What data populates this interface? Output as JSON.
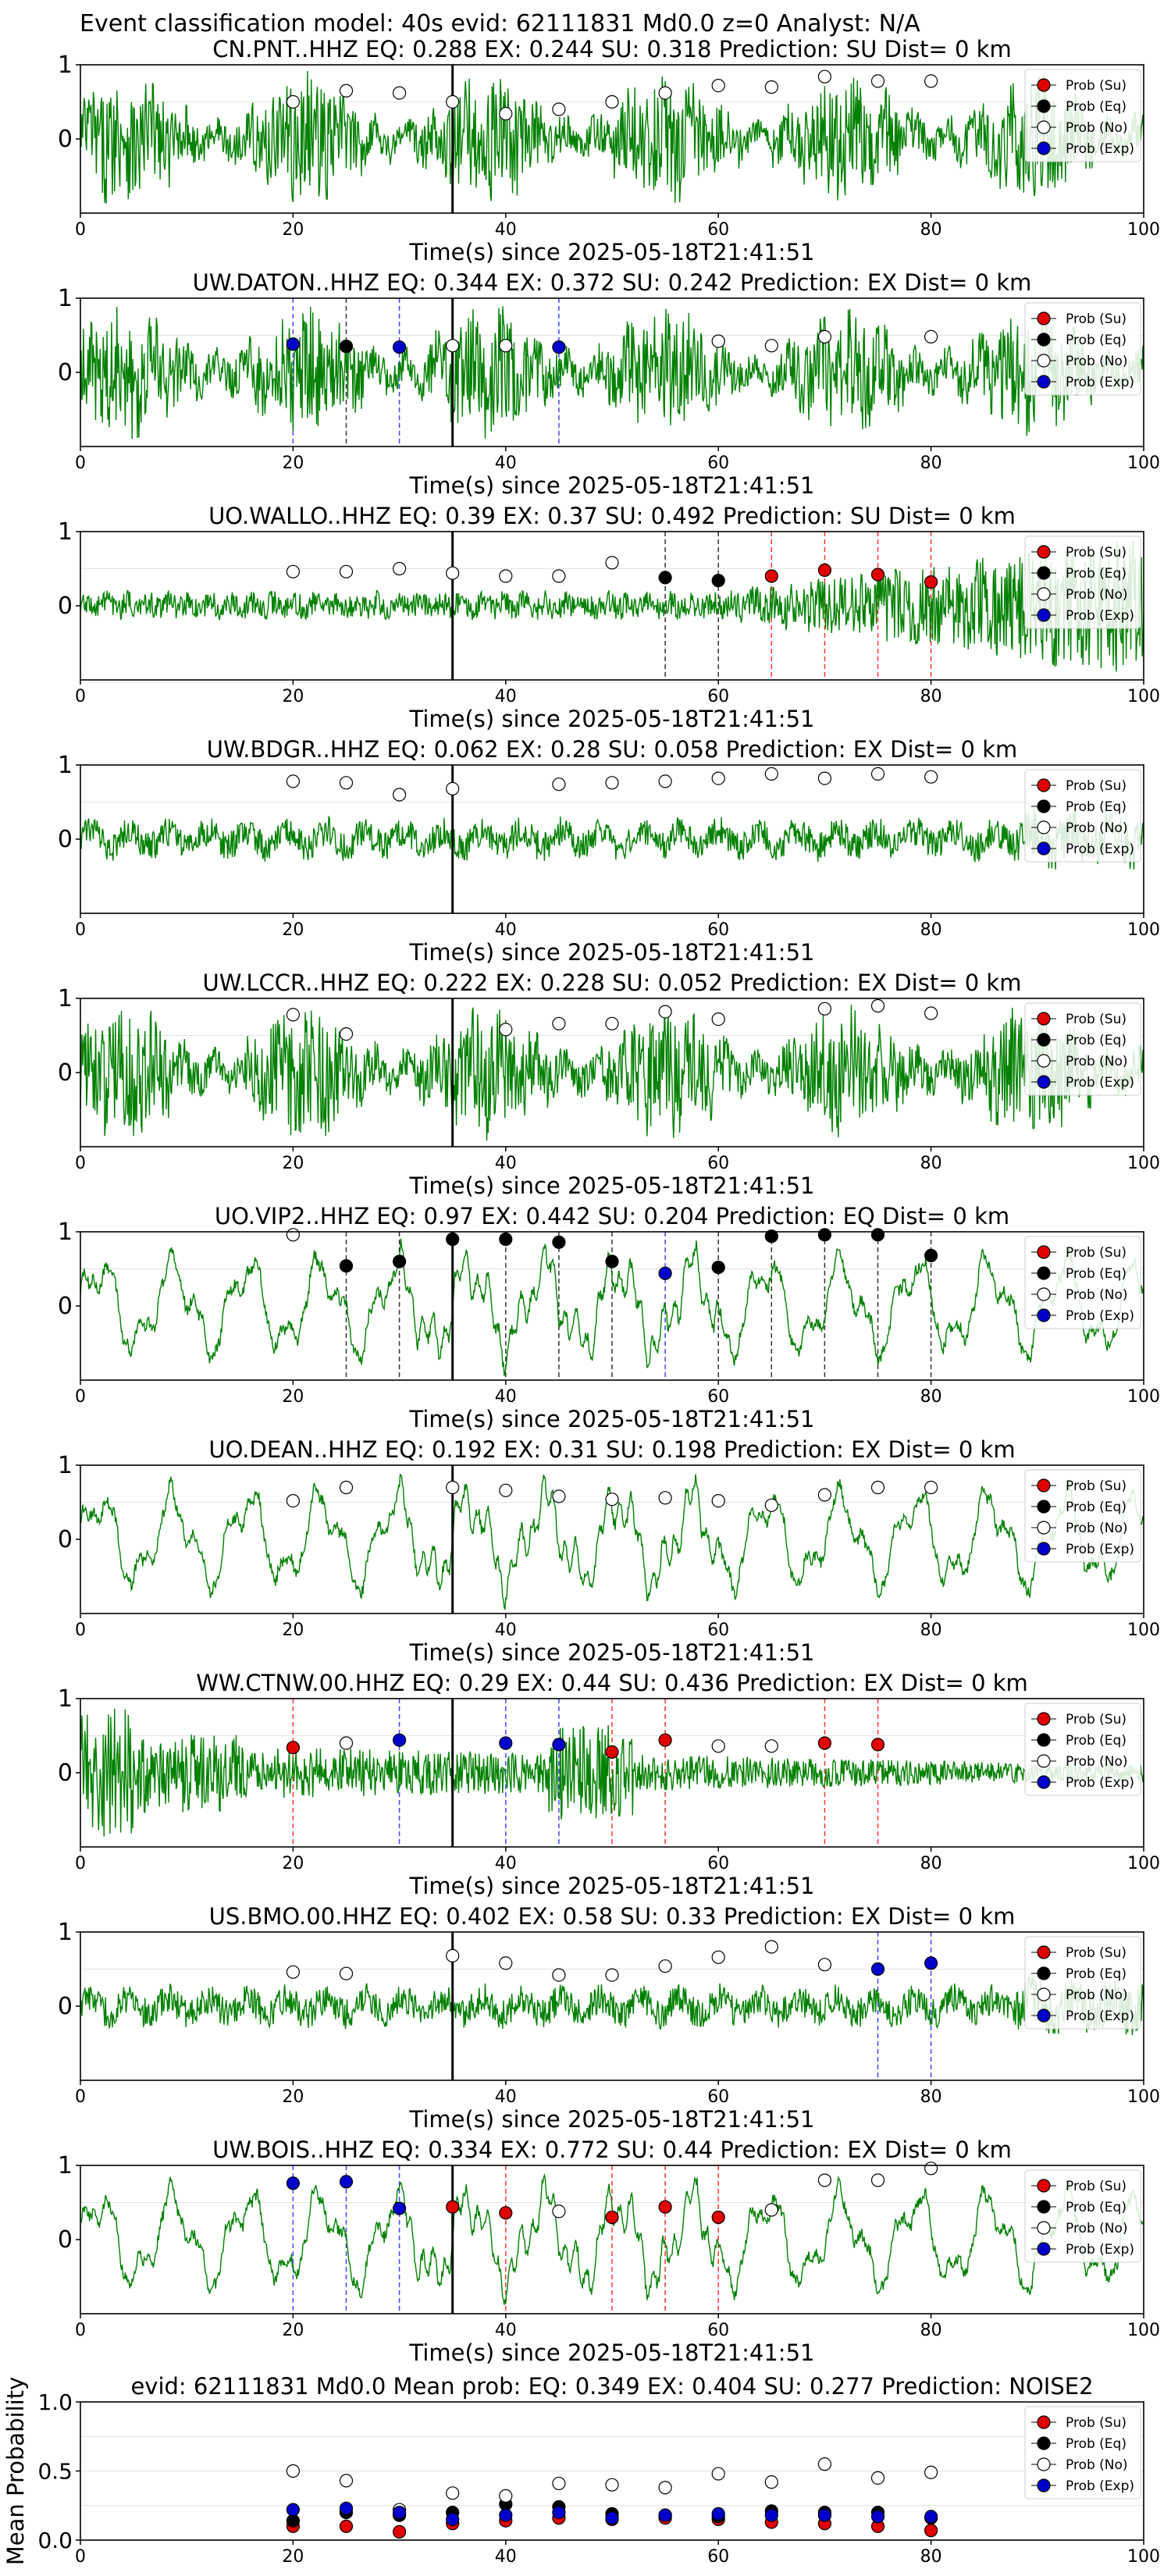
{
  "figure_title": "Event classification model: 40s evid: 62111831 Md0.0 z=0 Analyst: N/A",
  "legend_labels": [
    "Prob (Su)",
    "Prob (Eq)",
    "Prob (No)",
    "Prob (Exp)"
  ],
  "colors": {
    "waveform": "#008000",
    "su": "#e00000",
    "eq": "#000000",
    "no": "#ffffff",
    "exp": "#0000cc",
    "pick_line": "#000000"
  },
  "chart_data": [
    {
      "type": "line",
      "title": "CN.PNT..HHZ  EQ: 0.288  EX: 0.244  SU: 0.318   Prediction: SU    Dist= 0 km",
      "xlabel": "Time(s) since 2025-05-18T21:41:51",
      "ylabel": "",
      "xlim": [
        0,
        100
      ],
      "ylim": [
        -1,
        1
      ],
      "xticks": [
        "0",
        "20",
        "40",
        "60",
        "80",
        "100"
      ],
      "yticks": [
        "1",
        "0"
      ],
      "style": "bursty",
      "pick_time": 35,
      "points": [
        {
          "x": 20,
          "y": 0.5,
          "class": "no"
        },
        {
          "x": 25,
          "y": 0.65,
          "class": "no"
        },
        {
          "x": 30,
          "y": 0.62,
          "class": "no"
        },
        {
          "x": 35,
          "y": 0.5,
          "class": "no"
        },
        {
          "x": 40,
          "y": 0.34,
          "class": "no"
        },
        {
          "x": 45,
          "y": 0.4,
          "class": "no"
        },
        {
          "x": 50,
          "y": 0.5,
          "class": "no"
        },
        {
          "x": 55,
          "y": 0.62,
          "class": "no"
        },
        {
          "x": 60,
          "y": 0.72,
          "class": "no"
        },
        {
          "x": 65,
          "y": 0.7,
          "class": "no"
        },
        {
          "x": 70,
          "y": 0.84,
          "class": "no"
        },
        {
          "x": 75,
          "y": 0.78,
          "class": "no"
        },
        {
          "x": 80,
          "y": 0.78,
          "class": "no"
        }
      ]
    },
    {
      "type": "line",
      "title": "UW.DATON..HHZ   EQ: 0.344  EX: 0.372  SU: 0.242   Prediction: EX    Dist= 0 km",
      "xlabel": "Time(s) since 2025-05-18T21:41:51",
      "ylabel": "",
      "xlim": [
        0,
        100
      ],
      "ylim": [
        -1,
        1
      ],
      "xticks": [
        "0",
        "20",
        "40",
        "60",
        "80",
        "100"
      ],
      "yticks": [
        "1",
        "0"
      ],
      "style": "bursty",
      "pick_time": 35,
      "points": [
        {
          "x": 20,
          "y": 0.38,
          "class": "exp"
        },
        {
          "x": 25,
          "y": 0.35,
          "class": "eq"
        },
        {
          "x": 30,
          "y": 0.34,
          "class": "exp"
        },
        {
          "x": 35,
          "y": 0.36,
          "class": "no"
        },
        {
          "x": 40,
          "y": 0.36,
          "class": "no"
        },
        {
          "x": 45,
          "y": 0.34,
          "class": "exp"
        },
        {
          "x": 60,
          "y": 0.42,
          "class": "no"
        },
        {
          "x": 65,
          "y": 0.36,
          "class": "no"
        },
        {
          "x": 70,
          "y": 0.48,
          "class": "no"
        },
        {
          "x": 80,
          "y": 0.48,
          "class": "no"
        }
      ]
    },
    {
      "type": "line",
      "title": "UO.WALLO..HHZ   EQ: 0.39  EX: 0.37  SU: 0.492   Prediction: SU    Dist= 0 km",
      "xlabel": "Time(s) since 2025-05-18T21:41:51",
      "ylabel": "",
      "xlim": [
        0,
        100
      ],
      "ylim": [
        -1,
        1
      ],
      "xticks": [
        "0",
        "20",
        "40",
        "60",
        "80",
        "100"
      ],
      "yticks": [
        "1",
        "0"
      ],
      "style": "growing",
      "pick_time": 35,
      "points": [
        {
          "x": 20,
          "y": 0.46,
          "class": "no"
        },
        {
          "x": 25,
          "y": 0.46,
          "class": "no"
        },
        {
          "x": 30,
          "y": 0.5,
          "class": "no"
        },
        {
          "x": 35,
          "y": 0.44,
          "class": "no"
        },
        {
          "x": 40,
          "y": 0.4,
          "class": "no"
        },
        {
          "x": 45,
          "y": 0.4,
          "class": "no"
        },
        {
          "x": 50,
          "y": 0.58,
          "class": "no"
        },
        {
          "x": 55,
          "y": 0.38,
          "class": "eq"
        },
        {
          "x": 60,
          "y": 0.34,
          "class": "eq"
        },
        {
          "x": 65,
          "y": 0.4,
          "class": "su"
        },
        {
          "x": 70,
          "y": 0.48,
          "class": "su"
        },
        {
          "x": 75,
          "y": 0.42,
          "class": "su"
        },
        {
          "x": 80,
          "y": 0.32,
          "class": "su"
        }
      ]
    },
    {
      "type": "line",
      "title": "UW.BDGR..HHZ    EQ: 0.062  EX: 0.28  SU: 0.058   Prediction: EX    Dist= 0 km",
      "xlabel": "Time(s) since 2025-05-18T21:41:51",
      "ylabel": "",
      "xlim": [
        0,
        100
      ],
      "ylim": [
        -1,
        1
      ],
      "xticks": [
        "0",
        "20",
        "40",
        "60",
        "80",
        "100"
      ],
      "yticks": [
        "1",
        "0"
      ],
      "style": "noise",
      "pick_time": 35,
      "points": [
        {
          "x": 20,
          "y": 0.78,
          "class": "no"
        },
        {
          "x": 25,
          "y": 0.76,
          "class": "no"
        },
        {
          "x": 30,
          "y": 0.6,
          "class": "no"
        },
        {
          "x": 35,
          "y": 0.68,
          "class": "no"
        },
        {
          "x": 45,
          "y": 0.74,
          "class": "no"
        },
        {
          "x": 50,
          "y": 0.76,
          "class": "no"
        },
        {
          "x": 55,
          "y": 0.78,
          "class": "no"
        },
        {
          "x": 60,
          "y": 0.82,
          "class": "no"
        },
        {
          "x": 65,
          "y": 0.88,
          "class": "no"
        },
        {
          "x": 70,
          "y": 0.82,
          "class": "no"
        },
        {
          "x": 75,
          "y": 0.88,
          "class": "no"
        },
        {
          "x": 80,
          "y": 0.84,
          "class": "no"
        }
      ]
    },
    {
      "type": "line",
      "title": "UW.LCCR..HHZ    EQ: 0.222  EX: 0.228  SU: 0.052   Prediction: EX    Dist= 0 km",
      "xlabel": "Time(s) since 2025-05-18T21:41:51",
      "ylabel": "",
      "xlim": [
        0,
        100
      ],
      "ylim": [
        -1,
        1
      ],
      "xticks": [
        "0",
        "20",
        "40",
        "60",
        "80",
        "100"
      ],
      "yticks": [
        "1",
        "0"
      ],
      "style": "bursty",
      "pick_time": 35,
      "points": [
        {
          "x": 20,
          "y": 0.78,
          "class": "no"
        },
        {
          "x": 25,
          "y": 0.52,
          "class": "no"
        },
        {
          "x": 40,
          "y": 0.58,
          "class": "no"
        },
        {
          "x": 45,
          "y": 0.66,
          "class": "no"
        },
        {
          "x": 50,
          "y": 0.66,
          "class": "no"
        },
        {
          "x": 55,
          "y": 0.82,
          "class": "no"
        },
        {
          "x": 60,
          "y": 0.72,
          "class": "no"
        },
        {
          "x": 70,
          "y": 0.86,
          "class": "no"
        },
        {
          "x": 75,
          "y": 0.9,
          "class": "no"
        },
        {
          "x": 80,
          "y": 0.8,
          "class": "no"
        }
      ]
    },
    {
      "type": "line",
      "title": "UO.VIP2..HHZ    EQ: 0.97  EX: 0.442  SU: 0.204   Prediction: EQ    Dist= 0 km",
      "xlabel": "Time(s) since 2025-05-18T21:41:51",
      "ylabel": "",
      "xlim": [
        0,
        100
      ],
      "ylim": [
        -1,
        1
      ],
      "xticks": [
        "0",
        "20",
        "40",
        "60",
        "80",
        "100"
      ],
      "yticks": [
        "1",
        "0"
      ],
      "style": "wave",
      "pick_time": 35,
      "points": [
        {
          "x": 20,
          "y": 0.96,
          "class": "no"
        },
        {
          "x": 25,
          "y": 0.54,
          "class": "eq"
        },
        {
          "x": 30,
          "y": 0.6,
          "class": "eq"
        },
        {
          "x": 35,
          "y": 0.9,
          "class": "eq"
        },
        {
          "x": 40,
          "y": 0.9,
          "class": "eq"
        },
        {
          "x": 45,
          "y": 0.86,
          "class": "eq"
        },
        {
          "x": 50,
          "y": 0.6,
          "class": "eq"
        },
        {
          "x": 55,
          "y": 0.44,
          "class": "exp"
        },
        {
          "x": 60,
          "y": 0.52,
          "class": "eq"
        },
        {
          "x": 65,
          "y": 0.94,
          "class": "eq"
        },
        {
          "x": 70,
          "y": 0.96,
          "class": "eq"
        },
        {
          "x": 75,
          "y": 0.96,
          "class": "eq"
        },
        {
          "x": 80,
          "y": 0.68,
          "class": "eq"
        }
      ]
    },
    {
      "type": "line",
      "title": "UO.DEAN..HHZ   EQ: 0.192  EX: 0.31  SU: 0.198   Prediction: EX    Dist= 0 km",
      "xlabel": "Time(s) since 2025-05-18T21:41:51",
      "ylabel": "",
      "xlim": [
        0,
        100
      ],
      "ylim": [
        -1,
        1
      ],
      "xticks": [
        "0",
        "20",
        "40",
        "60",
        "80",
        "100"
      ],
      "yticks": [
        "1",
        "0"
      ],
      "style": "wave",
      "pick_time": 35,
      "points": [
        {
          "x": 20,
          "y": 0.52,
          "class": "no"
        },
        {
          "x": 25,
          "y": 0.7,
          "class": "no"
        },
        {
          "x": 35,
          "y": 0.7,
          "class": "no"
        },
        {
          "x": 40,
          "y": 0.66,
          "class": "no"
        },
        {
          "x": 45,
          "y": 0.58,
          "class": "no"
        },
        {
          "x": 50,
          "y": 0.54,
          "class": "no"
        },
        {
          "x": 55,
          "y": 0.56,
          "class": "no"
        },
        {
          "x": 60,
          "y": 0.52,
          "class": "no"
        },
        {
          "x": 65,
          "y": 0.46,
          "class": "no"
        },
        {
          "x": 70,
          "y": 0.6,
          "class": "no"
        },
        {
          "x": 75,
          "y": 0.7,
          "class": "no"
        },
        {
          "x": 80,
          "y": 0.7,
          "class": "no"
        }
      ]
    },
    {
      "type": "line",
      "title": "WW.CTNW.00.HHZ   EQ: 0.29  EX: 0.44  SU: 0.436   Prediction: EX    Dist= 0 km",
      "xlabel": "Time(s) since 2025-05-18T21:41:51",
      "ylabel": "",
      "xlim": [
        0,
        100
      ],
      "ylim": [
        -1,
        1
      ],
      "xticks": [
        "0",
        "20",
        "40",
        "60",
        "80",
        "100"
      ],
      "yticks": [
        "1",
        "0"
      ],
      "style": "decay",
      "pick_time": 35,
      "points": [
        {
          "x": 20,
          "y": 0.34,
          "class": "su"
        },
        {
          "x": 25,
          "y": 0.4,
          "class": "no"
        },
        {
          "x": 30,
          "y": 0.44,
          "class": "exp"
        },
        {
          "x": 40,
          "y": 0.4,
          "class": "exp"
        },
        {
          "x": 45,
          "y": 0.38,
          "class": "exp"
        },
        {
          "x": 50,
          "y": 0.28,
          "class": "su"
        },
        {
          "x": 55,
          "y": 0.44,
          "class": "su"
        },
        {
          "x": 60,
          "y": 0.36,
          "class": "no"
        },
        {
          "x": 65,
          "y": 0.36,
          "class": "no"
        },
        {
          "x": 70,
          "y": 0.4,
          "class": "su"
        },
        {
          "x": 75,
          "y": 0.38,
          "class": "su"
        }
      ]
    },
    {
      "type": "line",
      "title": "US.BMO.00.HHZ   EQ: 0.402  EX: 0.58  SU: 0.33   Prediction: EX    Dist= 0 km",
      "xlabel": "Time(s) since 2025-05-18T21:41:51",
      "ylabel": "",
      "xlim": [
        0,
        100
      ],
      "ylim": [
        -1,
        1
      ],
      "xticks": [
        "0",
        "20",
        "40",
        "60",
        "80",
        "100"
      ],
      "yticks": [
        "1",
        "0"
      ],
      "style": "noise",
      "pick_time": 35,
      "points": [
        {
          "x": 20,
          "y": 0.46,
          "class": "no"
        },
        {
          "x": 25,
          "y": 0.44,
          "class": "no"
        },
        {
          "x": 35,
          "y": 0.68,
          "class": "no"
        },
        {
          "x": 40,
          "y": 0.58,
          "class": "no"
        },
        {
          "x": 45,
          "y": 0.42,
          "class": "no"
        },
        {
          "x": 50,
          "y": 0.42,
          "class": "no"
        },
        {
          "x": 55,
          "y": 0.54,
          "class": "no"
        },
        {
          "x": 60,
          "y": 0.66,
          "class": "no"
        },
        {
          "x": 65,
          "y": 0.8,
          "class": "no"
        },
        {
          "x": 70,
          "y": 0.56,
          "class": "no"
        },
        {
          "x": 75,
          "y": 0.5,
          "class": "exp"
        },
        {
          "x": 80,
          "y": 0.58,
          "class": "exp"
        }
      ]
    },
    {
      "type": "line",
      "title": "UW.BOIS..HHZ   EQ: 0.334  EX: 0.772  SU: 0.44   Prediction: EX    Dist= 0 km",
      "xlabel": "Time(s) since 2025-05-18T21:41:51",
      "ylabel": "",
      "xlim": [
        0,
        100
      ],
      "ylim": [
        -1,
        1
      ],
      "xticks": [
        "0",
        "20",
        "40",
        "60",
        "80",
        "100"
      ],
      "yticks": [
        "1",
        "0"
      ],
      "style": "wave",
      "pick_time": 35,
      "points": [
        {
          "x": 20,
          "y": 0.76,
          "class": "exp"
        },
        {
          "x": 25,
          "y": 0.78,
          "class": "exp"
        },
        {
          "x": 30,
          "y": 0.42,
          "class": "exp"
        },
        {
          "x": 35,
          "y": 0.44,
          "class": "su"
        },
        {
          "x": 40,
          "y": 0.36,
          "class": "su"
        },
        {
          "x": 45,
          "y": 0.38,
          "class": "no"
        },
        {
          "x": 50,
          "y": 0.3,
          "class": "su"
        },
        {
          "x": 55,
          "y": 0.44,
          "class": "su"
        },
        {
          "x": 60,
          "y": 0.3,
          "class": "su"
        },
        {
          "x": 65,
          "y": 0.4,
          "class": "no"
        },
        {
          "x": 70,
          "y": 0.8,
          "class": "no"
        },
        {
          "x": 75,
          "y": 0.8,
          "class": "no"
        },
        {
          "x": 80,
          "y": 0.96,
          "class": "no"
        }
      ]
    },
    {
      "type": "scatter",
      "title": "evid: 62111831  Md0.0   Mean prob:    EQ: 0.349  EX: 0.404  SU: 0.277   Prediction: NOISE2",
      "xlabel": "",
      "ylabel": "Mean Probability",
      "xlim": [
        0,
        100
      ],
      "ylim": [
        0,
        1
      ],
      "xticks": [
        "0",
        "20",
        "40",
        "60",
        "80",
        "100"
      ],
      "yticks": [
        "1.0",
        "0.5",
        "0.0"
      ],
      "series": [
        {
          "name": "Prob (Su)",
          "class": "su",
          "x": [
            20,
            25,
            30,
            35,
            40,
            45,
            50,
            55,
            60,
            65,
            70,
            75,
            80
          ],
          "y": [
            0.1,
            0.1,
            0.06,
            0.12,
            0.14,
            0.16,
            0.15,
            0.16,
            0.15,
            0.13,
            0.12,
            0.1,
            0.07
          ]
        },
        {
          "name": "Prob (Eq)",
          "class": "eq",
          "x": [
            20,
            25,
            30,
            35,
            40,
            45,
            50,
            55,
            60,
            65,
            70,
            75,
            80
          ],
          "y": [
            0.14,
            0.2,
            0.18,
            0.2,
            0.26,
            0.24,
            0.19,
            0.18,
            0.17,
            0.21,
            0.2,
            0.2,
            0.16
          ]
        },
        {
          "name": "Prob (No)",
          "class": "no",
          "x": [
            20,
            25,
            30,
            35,
            40,
            45,
            50,
            55,
            60,
            65,
            70,
            75,
            80
          ],
          "y": [
            0.5,
            0.43,
            0.22,
            0.34,
            0.32,
            0.41,
            0.4,
            0.38,
            0.48,
            0.42,
            0.55,
            0.45,
            0.49
          ]
        },
        {
          "name": "Prob (Exp)",
          "class": "exp",
          "x": [
            20,
            25,
            30,
            35,
            40,
            45,
            50,
            55,
            60,
            65,
            70,
            75,
            80
          ],
          "y": [
            0.22,
            0.23,
            0.2,
            0.15,
            0.18,
            0.2,
            0.16,
            0.18,
            0.19,
            0.18,
            0.18,
            0.17,
            0.17
          ]
        }
      ]
    }
  ]
}
